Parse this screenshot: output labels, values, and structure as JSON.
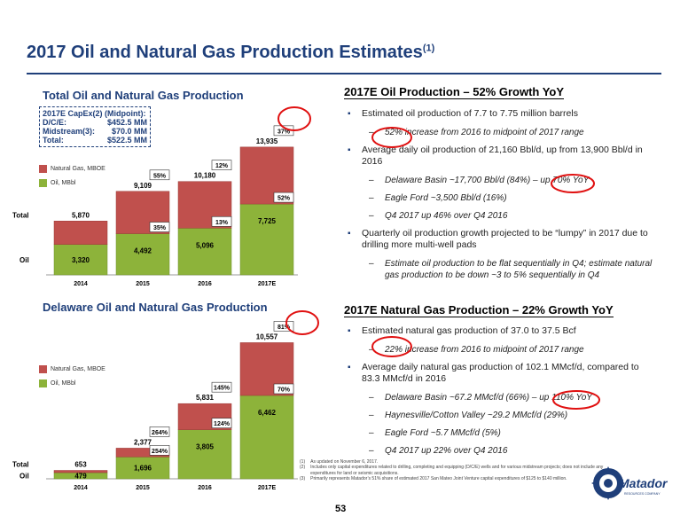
{
  "slide": {
    "title": "2017 Oil and Natural Gas Production Estimates",
    "title_sup": "(1)",
    "page_number": "53"
  },
  "colors": {
    "navy": "#1f3f7a",
    "gas_red": "#c0504d",
    "oil_green": "#8db33a",
    "circle_red": "#e01010"
  },
  "left_panels": {
    "total_title": "Total Oil and Natural Gas Production",
    "delaware_title": "Delaware Oil and Natural Gas Production",
    "capex": {
      "header": "2017E CapEx(2) (Midpoint):",
      "rows": [
        {
          "label": "D/C/E:",
          "value": "$452.5 MM"
        },
        {
          "label": "Midstream(3):",
          "value": "$70.0 MM"
        },
        {
          "label": "Total:",
          "value": "$522.5 MM"
        }
      ]
    },
    "legend": {
      "gas": "Natural Gas, MBOE",
      "oil": "Oil, MBbl"
    },
    "row_labels": {
      "total": "Total",
      "oil": "Oil"
    }
  },
  "chart_data": [
    {
      "type": "bar",
      "title": "Total Oil and Natural Gas Production",
      "categories": [
        "2014",
        "2015",
        "2016",
        "2017E"
      ],
      "series": [
        {
          "name": "Oil, MBbl",
          "values": [
            3320,
            4492,
            5096,
            7725
          ]
        },
        {
          "name": "Natural Gas, MBOE",
          "values": [
            2550,
            4617,
            5084,
            6210
          ]
        }
      ],
      "total_labels": [
        "5,870",
        "9,109",
        "10,180",
        "13,935"
      ],
      "oil_labels": [
        "3,320",
        "4,492",
        "5,096",
        "7,725"
      ],
      "total_growth": [
        "",
        "55%",
        "12%",
        "37%"
      ],
      "oil_growth": [
        "",
        "35%",
        "13%",
        "52%"
      ],
      "ylim": [
        0,
        14500
      ]
    },
    {
      "type": "bar",
      "title": "Delaware Oil and Natural Gas Production",
      "categories": [
        "2014",
        "2015",
        "2016",
        "2017E"
      ],
      "series": [
        {
          "name": "Oil, MBbl",
          "values": [
            479,
            1696,
            3805,
            6462
          ]
        },
        {
          "name": "Natural Gas, MBOE",
          "values": [
            174,
            681,
            2026,
            4095
          ]
        }
      ],
      "total_labels": [
        "653",
        "2,377",
        "5,831",
        "10,557"
      ],
      "oil_labels": [
        "479",
        "1,696",
        "3,805",
        "6,462"
      ],
      "total_growth": [
        "",
        "264%",
        "145%",
        "81%"
      ],
      "oil_growth": [
        "",
        "254%",
        "124%",
        "70%"
      ],
      "ylim": [
        0,
        11000
      ]
    }
  ],
  "oil_section": {
    "heading": "2017E Oil Production – 52% Growth YoY",
    "b1": "Estimated oil production of 7.7 to 7.75 million barrels",
    "b1s1": "52% increase from 2016 to midpoint of 2017 range",
    "b2": "Average daily oil production of 21,160 Bbl/d, up from 13,900 Bbl/d in 2016",
    "b2s1": "Delaware Basin ~17,700 Bbl/d (84%) – up 70% YoY",
    "b2s2": "Eagle Ford ~3,500 Bbl/d (16%)",
    "b2s3": "Q4 2017 up 46% over Q4 2016",
    "b3": "Quarterly oil production growth projected to be “lumpy” in 2017 due to drilling more multi-well pads",
    "b3s1": "Estimate oil production to be flat sequentially in Q4; estimate natural gas production to be down ~3 to 5% sequentially in Q4"
  },
  "gas_section": {
    "heading": "2017E Natural Gas Production – 22% Growth YoY",
    "b1": "Estimated natural gas production of 37.0 to 37.5 Bcf",
    "b1s1": "22% increase from 2016 to midpoint of 2017 range",
    "b2": "Average daily natural gas production of 102.1 MMcf/d, compared to 83.3 MMcf/d in 2016",
    "b2s1": "Delaware Basin ~67.2 MMcf/d (66%) – up 110% YoY",
    "b2s2": "Haynesville/Cotton Valley ~29.2 MMcf/d (29%)",
    "b2s3": "Eagle Ford ~5.7 MMcf/d (5%)",
    "b2s4": "Q4 2017 up 22% over Q4 2016"
  },
  "footnotes": [
    {
      "n": "(1)",
      "t": "As updated on November 6, 2017."
    },
    {
      "n": "(2)",
      "t": "Includes only capital expenditures related to drilling, completing and equipping (D/C/E) wells and for various midstream projects; does not include any expenditures for land or seismic acquisitions."
    },
    {
      "n": "(3)",
      "t": "Primarily represents Matador’s 51% share of estimated 2017 San Mateo Joint Venture capital expenditures of $125 to $140 million."
    }
  ],
  "logo": {
    "name": "Matador",
    "tagline": "RESOURCES COMPANY"
  }
}
